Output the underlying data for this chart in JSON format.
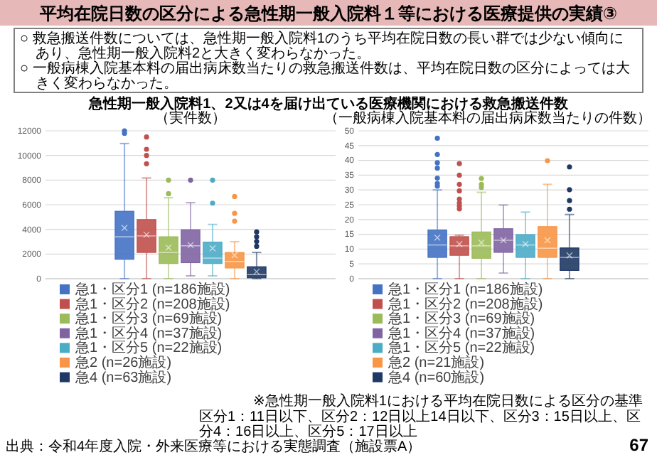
{
  "chart_data": [
    {
      "type": "other",
      "title": "平均在院日数の区分による急性期一般入院料１等における医療提供の実績③",
      "subtitle": "急性期一般入院料1、2又は4を届け出ている医療機関における救急搬送件数",
      "annotations": [
        "○ 救急搬送件数については、急性期一般入院料1のうち平均在院日数の長い群では少ない傾向にあり、急性期一般入院料2と大きく変わらなかった。",
        "○ 一般病棟入院基本料の届出病床数当たりの救急搬送件数は、平均在院日数の区分によっては大きく変わらなかった。",
        "※急性期一般入院料1における平均在院日数による区分の基準",
        "区分1：11日以下、区分2：12日以上14日以下、区分3：15日以上、区分4：16日以上、区分5：17日以上",
        "出典：令和4年度入院・外来医療等における実態調査（施設票A）",
        "67"
      ]
    },
    {
      "type": "box",
      "title": "（実件数）",
      "categories": [
        null
      ],
      "ylim": [
        0,
        12000
      ],
      "yticks": [
        0,
        2000,
        4000,
        6000,
        8000,
        10000,
        12000
      ],
      "grid": "y",
      "legend": "bottom",
      "series": [
        {
          "name": "急1・区分1 (n=186施設)",
          "color": "#4472c4",
          "boxes": [
            {
              "low": 0,
              "q1": 1570,
              "median": 3400,
              "q3": 5470,
              "high": 10970,
              "mean": 4130,
              "outliers": [
                12000,
                11800
              ]
            }
          ]
        },
        {
          "name": "急1・区分2 (n=208施設)",
          "color": "#c0504d",
          "boxes": [
            {
              "low": 0,
              "q1": 2130,
              "median": 3470,
              "q3": 4800,
              "high": 8170,
              "mean": 3570,
              "outliers": [
                11500,
                10500,
                10000,
                9330
              ]
            }
          ]
        },
        {
          "name": "急1・区分3 (n=69施設)",
          "color": "#9bbb59",
          "boxes": [
            {
              "low": 0,
              "q1": 1230,
              "median": 2130,
              "q3": 3400,
              "high": 6570,
              "mean": 2530,
              "outliers": [
                8000,
                6900
              ]
            }
          ]
        },
        {
          "name": "急1・区分4 (n=37施設)",
          "color": "#8064a2",
          "boxes": [
            {
              "low": 230,
              "q1": 1300,
              "median": 2670,
              "q3": 3970,
              "high": 6170,
              "mean": 2730,
              "outliers": [
                8000
              ]
            }
          ]
        },
        {
          "name": "急1・区分5 (n=22施設)",
          "color": "#4bacc6",
          "boxes": [
            {
              "low": 230,
              "q1": 1230,
              "median": 1670,
              "q3": 2970,
              "high": 4400,
              "mean": 2470,
              "outliers": [
                8000,
                6130
              ]
            }
          ]
        },
        {
          "name": "急2 (n=26施設)",
          "color": "#f79646",
          "boxes": [
            {
              "low": 0,
              "q1": 870,
              "median": 1400,
              "q3": 2130,
              "high": 3000,
              "mean": 1900,
              "outliers": [
                6670,
                5300,
                4670
              ]
            }
          ]
        },
        {
          "name": "急4 (n=63施設)",
          "color": "#1f3864",
          "boxes": [
            {
              "low": 0,
              "q1": 70,
              "median": 330,
              "q3": 970,
              "high": 2130,
              "mean": 570,
              "outliers": [
                3800,
                3400,
                3030,
                2630
              ]
            }
          ]
        }
      ]
    },
    {
      "type": "box",
      "title": "（一般病棟入院基本料の届出病床数当たりの件数）",
      "categories": [
        null
      ],
      "ylim": [
        0,
        50
      ],
      "yticks": [
        0,
        5,
        10,
        15,
        20,
        25,
        30,
        35,
        40,
        45,
        50
      ],
      "grid": "y",
      "legend": "bottom",
      "series": [
        {
          "name": "急1・区分1 (n=186施設)",
          "color": "#4472c4",
          "boxes": [
            {
              "low": 0,
              "q1": 7.2,
              "median": 11.4,
              "q3": 16.5,
              "high": 30,
              "mean": 13.9,
              "outliers": [
                47.5,
                42,
                39.2,
                37.4,
                34,
                32.2,
                31.3
              ]
            }
          ]
        },
        {
          "name": "急1・区分2 (n=208施設)",
          "color": "#c0504d",
          "boxes": [
            {
              "low": 0,
              "q1": 7.9,
              "median": 11.1,
              "q3": 14.2,
              "high": 14.7,
              "mean": 11.7,
              "outliers": [
                38.9,
                35,
                31.9,
                29.7,
                26.9,
                25.6,
                24.6,
                23.6
              ]
            }
          ]
        },
        {
          "name": "急1・区分3 (n=69施設)",
          "color": "#9bbb59",
          "boxes": [
            {
              "low": 0,
              "q1": 6.9,
              "median": 11.1,
              "q3": 15.8,
              "high": 29.2,
              "mean": 12.2,
              "outliers": [
                33.9,
                31.9,
                30.8
              ]
            }
          ]
        },
        {
          "name": "急1・区分4 (n=37施設)",
          "color": "#8064a2",
          "boxes": [
            {
              "low": 1.9,
              "q1": 8.9,
              "median": 13,
              "q3": 16.9,
              "high": 24.9,
              "mean": 13
            }
          ]
        },
        {
          "name": "急1・区分5 (n=22施設)",
          "color": "#4bacc6",
          "boxes": [
            {
              "low": 0,
              "q1": 7.2,
              "median": 11.4,
              "q3": 14.9,
              "high": 22.5,
              "mean": 11.7
            }
          ]
        },
        {
          "name": "急2 (n=21施設)",
          "color": "#f79646",
          "boxes": [
            {
              "low": 0,
              "q1": 7.2,
              "median": 10.3,
              "q3": 17.6,
              "high": 31.9,
              "mean": 13,
              "outliers": [
                39.9
              ]
            }
          ]
        },
        {
          "name": "急4 (n=60施設)",
          "color": "#1f3864",
          "boxes": [
            {
              "low": 0,
              "q1": 2.8,
              "median": 7.2,
              "q3": 10.4,
              "high": 21.7,
              "mean": 7.9,
              "outliers": [
                37.8,
                30.1,
                26.4,
                23.5
              ]
            }
          ]
        }
      ]
    }
  ]
}
